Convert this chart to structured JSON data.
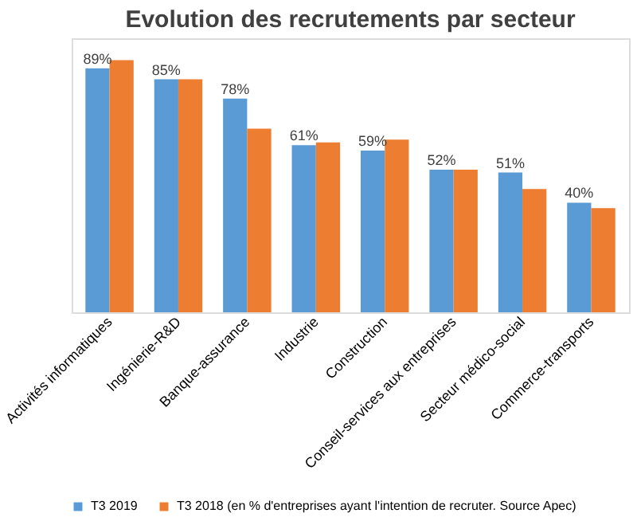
{
  "chart_data": {
    "type": "bar",
    "title": "Evolution des recrutements par secteur",
    "categories": [
      "Activités informatiques",
      "Ingénierie-R&D",
      "Banque-assurance",
      "Industrie",
      "Construction",
      "Conseil-services aux entreprises",
      "Secteur médico-social",
      "Commerce-transports"
    ],
    "series": [
      {
        "name": "T3 2019",
        "color": "#5b9bd5",
        "values": [
          89,
          85,
          78,
          61,
          59,
          52,
          51,
          40
        ],
        "value_labels": [
          "89%",
          "85%",
          "78%",
          "61%",
          "59%",
          "52%",
          "51%",
          "40%"
        ]
      },
      {
        "name": "T3 2018 (en % d'entreprises ayant l'intention de recruter. Source Apec)",
        "color": "#ed7d31",
        "values": [
          92,
          85,
          67,
          62,
          63,
          52,
          45,
          38
        ]
      }
    ],
    "ylim": [
      0,
      100
    ],
    "tick_labels": "x",
    "legend": "bottom"
  }
}
